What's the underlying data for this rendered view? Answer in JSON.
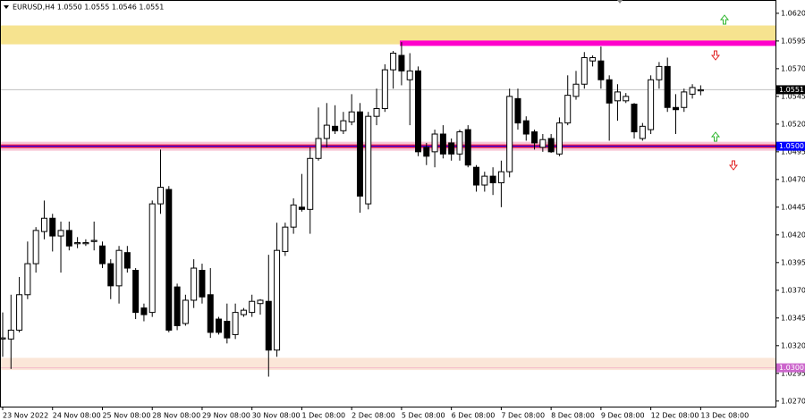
{
  "chart_data": {
    "type": "candlestick",
    "header": "EURUSD,H4  1.0550 1.0555 1.0546 1.0551",
    "categories": [
      "23 Nov 2022",
      null,
      null,
      null,
      null,
      null,
      "24 Nov 08:00",
      null,
      null,
      null,
      null,
      null,
      "25 Nov 08:00",
      null,
      null,
      null,
      null,
      null,
      "28 Nov 08:00",
      null,
      null,
      null,
      null,
      null,
      "29 Nov 08:00",
      null,
      null,
      null,
      null,
      null,
      "30 Nov 08:00",
      null,
      null,
      null,
      null,
      null,
      "1 Dec 08:00",
      null,
      null,
      null,
      null,
      null,
      "2 Dec 08:00",
      null,
      null,
      null,
      null,
      null,
      "5 Dec 08:00",
      null,
      null,
      null,
      null,
      null,
      "6 Dec 08:00",
      null,
      null,
      null,
      null,
      null,
      "7 Dec 08:00",
      null,
      null,
      null,
      null,
      null,
      "8 Dec 08:00",
      null,
      null,
      null,
      null,
      null,
      "9 Dec 08:00",
      null,
      null,
      null,
      null,
      null,
      "12 Dec 08:00",
      null,
      null,
      null,
      null,
      null,
      "13 Dec 08:00"
    ],
    "open": [
      1.0326,
      1.0326,
      1.0334,
      1.0366,
      1.0394,
      1.0423,
      1.0435,
      1.0419,
      1.0424,
      1.0412,
      1.0412,
      1.0414,
      1.041,
      1.0394,
      1.0374,
      1.0404,
      1.0388,
      1.0354,
      1.035,
      1.0448,
      1.0461,
      1.0373,
      1.034,
      1.0361,
      1.0388,
      1.0366,
      1.0344,
      1.0342,
      1.033,
      1.0348,
      1.035,
      1.0358,
      1.036,
      1.0316,
      1.0405,
      1.0427,
      1.0445,
      1.0443,
      1.0489,
      1.0507,
      1.0518,
      1.0514,
      1.0522,
      1.0531,
      1.0448,
      1.0527,
      1.0534,
      1.0569,
      1.0582,
      1.056,
      1.0568,
      1.0499,
      1.0495,
      1.0511,
      1.0503,
      1.0493,
      1.0515,
      1.0481,
      1.0465,
      1.0473,
      1.0467,
      1.0477,
      1.0543,
      1.0523,
      1.0513,
      1.0499,
      1.0507,
      1.0493,
      1.0521,
      1.0545,
      1.0556,
      1.0577,
      1.0577,
      1.056,
      1.0541,
      1.0541,
      1.0538,
      1.0507,
      1.0515,
      1.056,
      1.0572,
      1.0535,
      1.0535,
      1.0547,
      1.055
    ],
    "high": [
      1.035,
      1.0366,
      1.0382,
      1.0414,
      1.0427,
      1.0451,
      1.0439,
      1.0432,
      1.0432,
      1.0418,
      1.0416,
      1.0432,
      1.0414,
      1.0398,
      1.041,
      1.041,
      1.039,
      1.0358,
      1.0451,
      1.0497,
      1.0464,
      1.0376,
      1.0366,
      1.0398,
      1.0394,
      1.039,
      1.0346,
      1.0358,
      1.0358,
      1.0354,
      1.0366,
      1.0362,
      1.0402,
      1.0431,
      1.0431,
      1.0453,
      1.0475,
      1.0499,
      1.0535,
      1.0539,
      1.0537,
      1.0531,
      1.0547,
      1.0539,
      1.0531,
      1.0552,
      1.0574,
      1.0586,
      1.0594,
      1.0584,
      1.0572,
      1.0503,
      1.0515,
      1.0519,
      1.0507,
      1.0515,
      1.0519,
      1.0483,
      1.0477,
      1.0481,
      1.0487,
      1.0552,
      1.0552,
      1.0527,
      1.0515,
      1.0511,
      1.0511,
      1.0526,
      1.0564,
      1.0568,
      1.0585,
      1.0582,
      1.059,
      1.0564,
      1.0556,
      1.0548,
      1.0539,
      1.0521,
      1.0564,
      1.0576,
      1.058,
      1.0547,
      1.0552,
      1.0556,
      1.0555
    ],
    "low": [
      1.031,
      1.0299,
      1.0332,
      1.0362,
      1.0386,
      1.0416,
      1.0405,
      1.0386,
      1.0406,
      1.0408,
      1.041,
      1.0406,
      1.039,
      1.0362,
      1.0358,
      1.0386,
      1.0344,
      1.0342,
      1.0346,
      1.0439,
      1.0332,
      1.0334,
      1.0338,
      1.0354,
      1.0358,
      1.0327,
      1.033,
      1.0322,
      1.0326,
      1.0346,
      1.0346,
      1.0348,
      1.0292,
      1.031,
      1.0401,
      1.0421,
      1.0441,
      1.0421,
      1.0487,
      1.0499,
      1.0511,
      1.0511,
      1.0519,
      1.044,
      1.0443,
      1.0519,
      1.0531,
      1.0552,
      1.0555,
      1.0519,
      1.0491,
      1.0483,
      1.0481,
      1.0489,
      1.0487,
      1.0487,
      1.0481,
      1.0459,
      1.0459,
      1.0456,
      1.0445,
      1.0472,
      1.0515,
      1.0505,
      1.0497,
      1.0495,
      1.0494,
      1.0491,
      1.0519,
      1.0542,
      1.0552,
      1.0572,
      1.0552,
      1.0505,
      1.0523,
      1.0539,
      1.0507,
      1.0505,
      1.0511,
      1.0552,
      1.0531,
      1.0511,
      1.0531,
      1.0543,
      1.0546
    ],
    "close": [
      1.0327,
      1.0334,
      1.0366,
      1.0394,
      1.0424,
      1.0435,
      1.0419,
      1.0424,
      1.041,
      1.0413,
      1.0413,
      1.0415,
      1.0394,
      1.0374,
      1.0406,
      1.039,
      1.035,
      1.0348,
      1.0448,
      1.0463,
      1.0334,
      1.0338,
      1.0361,
      1.039,
      1.0364,
      1.0332,
      1.0332,
      1.0327,
      1.035,
      1.0352,
      1.036,
      1.0361,
      1.0316,
      1.0406,
      1.0427,
      1.0447,
      1.0443,
      1.0489,
      1.0507,
      1.0519,
      1.0514,
      1.0523,
      1.0531,
      1.0455,
      1.0527,
      1.0534,
      1.0569,
      1.0584,
      1.0568,
      1.0568,
      1.0495,
      1.0491,
      1.0511,
      1.0493,
      1.0493,
      1.0513,
      1.0483,
      1.0465,
      1.0473,
      1.0467,
      1.0477,
      1.0545,
      1.0521,
      1.0511,
      1.0503,
      1.0506,
      1.0495,
      1.0521,
      1.0546,
      1.0556,
      1.058,
      1.058,
      1.056,
      1.0539,
      1.0549,
      1.0545,
      1.0513,
      1.0518,
      1.056,
      1.0572,
      1.0535,
      1.0533,
      1.0549,
      1.0553,
      1.0551
    ],
    "ylim": [
      1.0265,
      1.0632
    ],
    "yticks": [
      {
        "value": 1.062,
        "label": "1.0620"
      },
      {
        "value": 1.0595,
        "label": "1.0595"
      },
      {
        "value": 1.057,
        "label": "1.0570"
      },
      {
        "value": 1.0545,
        "label": "1.0545"
      },
      {
        "value": 1.052,
        "label": "1.0520"
      },
      {
        "value": 1.0495,
        "label": "1.0495"
      },
      {
        "value": 1.047,
        "label": "1.0470"
      },
      {
        "value": 1.0445,
        "label": "1.0445"
      },
      {
        "value": 1.042,
        "label": "1.0420"
      },
      {
        "value": 1.0395,
        "label": "1.0395"
      },
      {
        "value": 1.037,
        "label": "1.0370"
      },
      {
        "value": 1.0345,
        "label": "1.0345"
      },
      {
        "value": 1.032,
        "label": "1.0320"
      },
      {
        "value": 1.0295,
        "label": "1.0295"
      },
      {
        "value": 1.027,
        "label": "1.0270"
      }
    ],
    "zones": [
      {
        "from": 1.0592,
        "to": 1.0609,
        "color": "#f6e38f"
      },
      {
        "from": 1.0298,
        "to": 1.0309,
        "color": "#fbe6d8"
      }
    ],
    "resistance": {
      "value": 1.0593,
      "color": "#ff00cc"
    },
    "levels": [
      {
        "value": 1.0551,
        "label": "1.0551",
        "color": "#000000",
        "line": "#c0c0c0"
      },
      {
        "value": 1.05,
        "label": "1.0500",
        "color": "#0000ff",
        "line": "#e8174a"
      },
      {
        "value": 1.03,
        "label": "1.0300",
        "color": "#cc66cc",
        "line": "#f4b8c8"
      }
    ],
    "up_color": "#ffffff",
    "down_color": "#000000"
  }
}
